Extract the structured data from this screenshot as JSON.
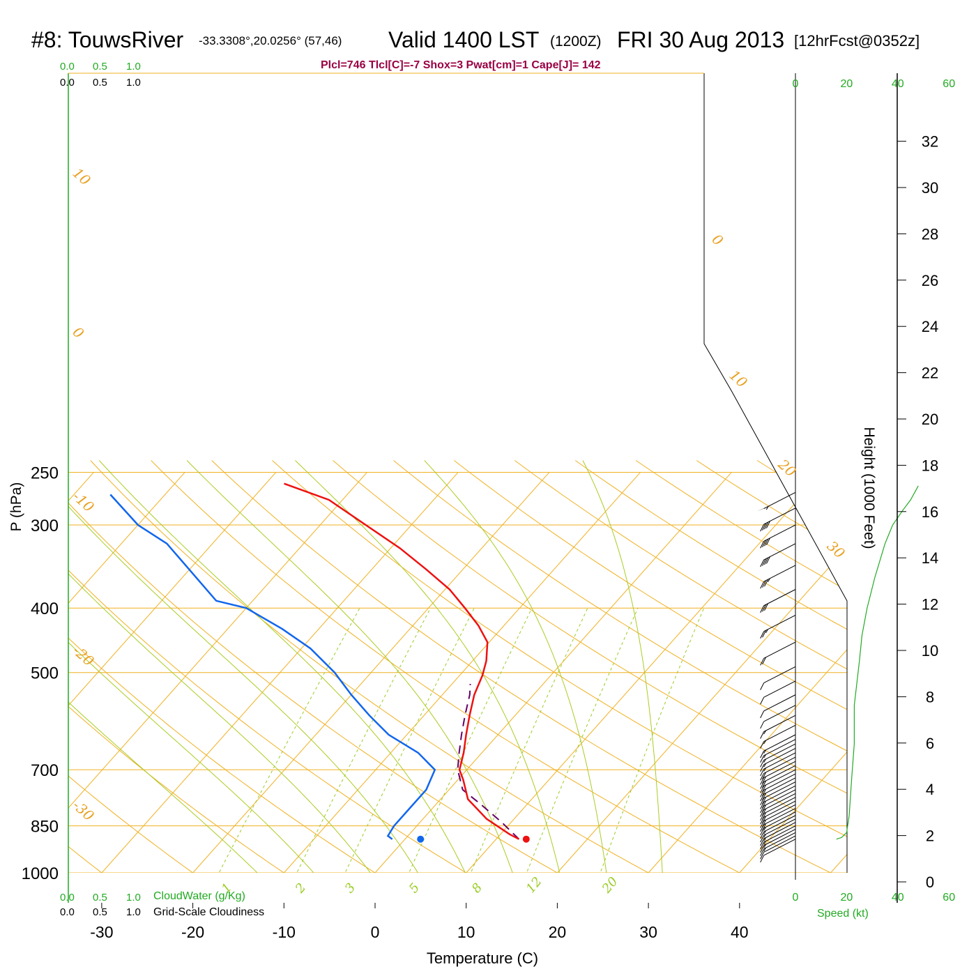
{
  "header": {
    "station": "#8: TouwsRiver",
    "coords": "-33.3308°,20.0256° (57,46)",
    "valid": "Valid 1400 LST",
    "utc": "(1200Z)",
    "date": "FRI 30 Aug 2013",
    "forecast": "[12hrFcst@0352z]",
    "indices": "Plcl=746 Tlcl[C]=-7 Shox=3 Pwat[cm]=1 Cape[J]= 142"
  },
  "colors": {
    "temperature": "#ee1111",
    "dewpoint": "#1166ee",
    "parcel": "#660066",
    "isotherm": "#f0b020",
    "dry_adiabat": "#aacc22",
    "mixing_ratio": "#99cc22",
    "speed_profile": "#22aa22",
    "grid": "#f0b020"
  },
  "chart_data": {
    "type": "line",
    "xlabel": "Temperature (C)",
    "ylabel": "P (hPa)",
    "x_ticks": [
      "-30",
      "-20",
      "-10",
      "0",
      "10",
      "20",
      "30",
      "40"
    ],
    "y_ticks": [
      "250",
      "300",
      "400",
      "500",
      "700",
      "850",
      "1000"
    ],
    "x_range": [
      -33.5,
      36
    ],
    "y_range": [
      1000,
      250
    ],
    "y_scale": "log-p",
    "isotherm_labels": [
      "10",
      "0",
      "-10",
      "-20",
      "-30",
      "0",
      "10",
      "20",
      "30"
    ],
    "mixing_ratio_labels": [
      "1",
      "2",
      "3",
      "5",
      "8",
      "12",
      "20"
    ],
    "series": [
      {
        "name": "temperature",
        "points": [
          [
            12.5,
            890
          ],
          [
            11,
            875
          ],
          [
            7,
            830
          ],
          [
            3,
            775
          ],
          [
            0.6,
            725
          ],
          [
            -0.8,
            700
          ],
          [
            -2,
            660
          ],
          [
            -3.5,
            620
          ],
          [
            -5,
            580
          ],
          [
            -6.5,
            540
          ],
          [
            -7.5,
            505
          ],
          [
            -8.5,
            480
          ],
          [
            -10.2,
            450
          ],
          [
            -12.8,
            425
          ],
          [
            -16,
            400
          ],
          [
            -19.5,
            375
          ],
          [
            -24,
            350
          ],
          [
            -29,
            325
          ],
          [
            -35,
            300
          ],
          [
            -41.5,
            275
          ],
          [
            -48,
            260
          ]
        ]
      },
      {
        "name": "dewpoint",
        "points": [
          [
            -1.4,
            890
          ],
          [
            -2.2,
            880
          ],
          [
            -2.5,
            850
          ],
          [
            -2.5,
            800
          ],
          [
            -2.5,
            750
          ],
          [
            -3.5,
            700
          ],
          [
            -7,
            660
          ],
          [
            -12,
            620
          ],
          [
            -16,
            580
          ],
          [
            -20,
            540
          ],
          [
            -24,
            500
          ],
          [
            -29,
            460
          ],
          [
            -34,
            430
          ],
          [
            -40,
            400
          ],
          [
            -44,
            390
          ],
          [
            -55,
            320
          ],
          [
            -60,
            300
          ],
          [
            -66,
            270
          ]
        ]
      },
      {
        "name": "parcel",
        "points": [
          [
            12.5,
            890
          ],
          [
            9,
            840
          ],
          [
            5,
            790
          ],
          [
            1.5,
            750
          ],
          [
            -1,
            700
          ],
          [
            -2.5,
            660
          ],
          [
            -4,
            620
          ],
          [
            -5.5,
            580
          ],
          [
            -7,
            540
          ],
          [
            -8,
            520
          ]
        ]
      }
    ],
    "surface_temp": [
      13.3,
      890
    ],
    "surface_dewpoint": [
      1.7,
      890
    ],
    "wind_barbs": [
      {
        "p": 890,
        "spd": 12
      },
      {
        "p": 880,
        "spd": 14
      },
      {
        "p": 870,
        "spd": 15
      },
      {
        "p": 860,
        "spd": 16
      },
      {
        "p": 850,
        "spd": 17
      },
      {
        "p": 840,
        "spd": 18
      },
      {
        "p": 830,
        "spd": 18
      },
      {
        "p": 820,
        "spd": 19
      },
      {
        "p": 810,
        "spd": 19
      },
      {
        "p": 800,
        "spd": 20
      },
      {
        "p": 790,
        "spd": 20
      },
      {
        "p": 780,
        "spd": 21
      },
      {
        "p": 770,
        "spd": 21
      },
      {
        "p": 760,
        "spd": 21
      },
      {
        "p": 750,
        "spd": 22
      },
      {
        "p": 740,
        "spd": 22
      },
      {
        "p": 730,
        "spd": 22
      },
      {
        "p": 720,
        "spd": 22
      },
      {
        "p": 710,
        "spd": 22
      },
      {
        "p": 700,
        "spd": 21
      },
      {
        "p": 690,
        "spd": 21
      },
      {
        "p": 680,
        "spd": 20
      },
      {
        "p": 670,
        "spd": 20
      },
      {
        "p": 660,
        "spd": 19
      },
      {
        "p": 650,
        "spd": 19
      },
      {
        "p": 640,
        "spd": 18
      },
      {
        "p": 630,
        "spd": 18
      },
      {
        "p": 620,
        "spd": 17
      },
      {
        "p": 600,
        "spd": 16
      },
      {
        "p": 580,
        "spd": 15
      },
      {
        "p": 560,
        "spd": 14
      },
      {
        "p": 540,
        "spd": 13
      },
      {
        "p": 515,
        "spd": 12
      },
      {
        "p": 490,
        "spd": 13
      },
      {
        "p": 450,
        "spd": 20
      },
      {
        "p": 410,
        "spd": 25
      },
      {
        "p": 375,
        "spd": 30
      },
      {
        "p": 345,
        "spd": 35
      },
      {
        "p": 320,
        "spd": 40
      },
      {
        "p": 300,
        "spd": 42
      },
      {
        "p": 283,
        "spd": 40
      },
      {
        "p": 268,
        "spd": 55
      }
    ],
    "height_axis": {
      "label": "Height (1000 Feet)",
      "ticks": [
        "0",
        "2",
        "4",
        "6",
        "8",
        "10",
        "12",
        "14",
        "16",
        "18",
        "20",
        "22",
        "24",
        "26",
        "28",
        "30",
        "32"
      ]
    },
    "speed_axis": {
      "label": "Speed (kt)",
      "ticks": [
        "0",
        "20",
        "40",
        "60"
      ],
      "profile": [
        [
          16,
          890
        ],
        [
          18,
          885
        ],
        [
          20,
          870
        ],
        [
          21,
          820
        ],
        [
          22,
          720
        ],
        [
          23,
          640
        ],
        [
          23,
          560
        ],
        [
          25,
          480
        ],
        [
          26,
          440
        ],
        [
          28,
          400
        ],
        [
          31,
          360
        ],
        [
          35,
          320
        ],
        [
          38,
          300
        ],
        [
          42,
          285
        ],
        [
          45,
          275
        ],
        [
          48,
          262
        ]
      ]
    },
    "cloud_axes": {
      "top_green_ticks": [
        "0.0",
        "0.5",
        "1.0"
      ],
      "top_black_ticks": [
        "0.0",
        "0.5",
        "1.0"
      ],
      "bottom_green_label": "CloudWater (g/Kg)",
      "bottom_black_label": "Grid-Scale Cloudiness"
    }
  }
}
